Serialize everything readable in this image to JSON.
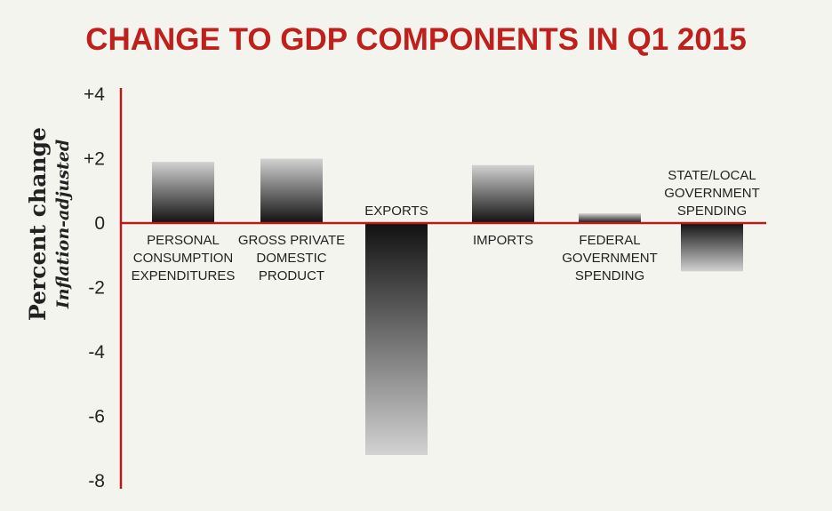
{
  "chart_data": {
    "type": "bar",
    "title": "CHANGE TO GDP COMPONENTS IN Q1 2015",
    "ylabel": "Percent change",
    "ylabel_sub": "Inflation-adjusted",
    "xlabel": "",
    "ylim": [
      -8,
      4
    ],
    "ytick_labels": [
      "+4",
      "+2",
      "0",
      "-2",
      "-4",
      "-6",
      "-8"
    ],
    "ytick_values": [
      4,
      2,
      0,
      -2,
      -4,
      -6,
      -8
    ],
    "categories": [
      "PERSONAL CONSUMPTION EXPENDITURES",
      "GROSS PRIVATE DOMESTIC PRODUCT",
      "EXPORTS",
      "IMPORTS",
      "FEDERAL GOVERNMENT SPENDING",
      "STATE/LOCAL GOVERNMENT SPENDING"
    ],
    "category_lines": [
      [
        "PERSONAL",
        "CONSUMPTION",
        "EXPENDITURES"
      ],
      [
        "GROSS PRIVATE",
        "DOMESTIC",
        "PRODUCT"
      ],
      [
        "EXPORTS"
      ],
      [
        "IMPORTS"
      ],
      [
        "FEDERAL",
        "GOVERNMENT",
        "SPENDING"
      ],
      [
        "STATE/LOCAL",
        "GOVERNMENT",
        "SPENDING"
      ]
    ],
    "values": [
      1.9,
      2.0,
      -7.2,
      1.8,
      0.3,
      -1.5
    ],
    "grid": false,
    "colors": {
      "title": "#c0201c",
      "axis": "#b71c1c",
      "bar_dark": "#111111",
      "bar_light": "#d2d2d2",
      "background": "#f4f4ef"
    }
  }
}
